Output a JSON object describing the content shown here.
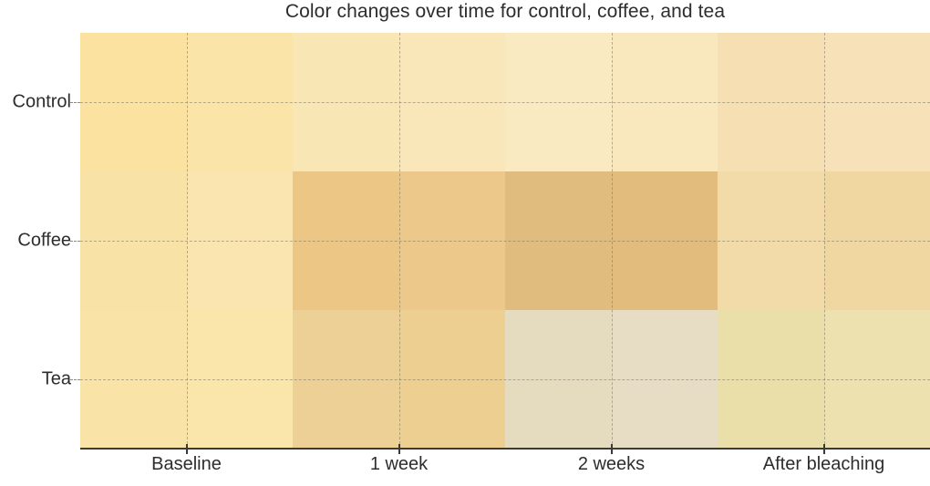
{
  "chart_data": {
    "type": "heatmap",
    "title": "Color changes over time for control, coffee, and tea",
    "rows": [
      "Control",
      "Coffee",
      "Tea"
    ],
    "columns": [
      "Baseline",
      "1 week",
      "2 weeks",
      "After bleaching"
    ],
    "subcells_per_column": 2,
    "cell_colors": [
      [
        "#FBE2A1",
        "#FBE4A8",
        "#F9E6B5",
        "#FAE7B9",
        "#FAEAC2",
        "#F9E8BD",
        "#F5DFB3",
        "#F6E1B8"
      ],
      [
        "#F9E2A6",
        "#FAE5B0",
        "#ECC685",
        "#EDC88B",
        "#E1BC7F",
        "#E2BC7C",
        "#F2DAA9",
        "#F0D6A0"
      ],
      [
        "#F9E3A7",
        "#FAE5AB",
        "#ECD095",
        "#EDCF91",
        "#E5DCC0",
        "#E6DDC4",
        "#EADFA9",
        "#ECE1AF"
      ]
    ],
    "x_tick_positions_pct": [
      12.5,
      37.5,
      62.5,
      87.5
    ],
    "y_tick_positions_pct": [
      16.667,
      50,
      83.333
    ],
    "grid": "dashed lines at tick positions",
    "legend": "none",
    "axis_color": "#3a3a3a",
    "text_color": "#2d2d2d",
    "gridline_color": "#7d7664"
  }
}
